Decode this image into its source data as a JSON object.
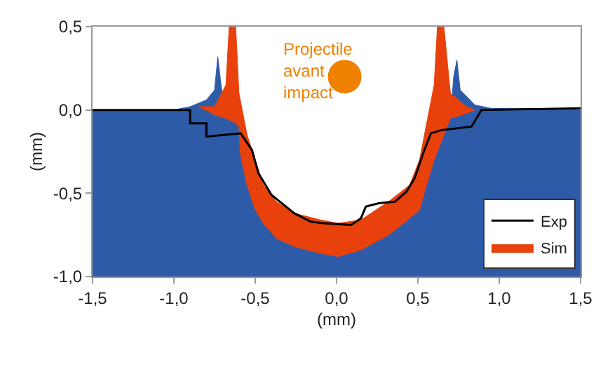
{
  "chart_data": {
    "type": "area",
    "xlabel": "(mm)",
    "ylabel": "(mm)",
    "xlim": [
      -1.5,
      1.5
    ],
    "ylim": [
      -1.0,
      0.5
    ],
    "xticks": [
      {
        "value": -1.5,
        "label": "-1,5"
      },
      {
        "value": -1.0,
        "label": "-1,0"
      },
      {
        "value": -0.5,
        "label": "-0,5"
      },
      {
        "value": 0,
        "label": "0,0"
      },
      {
        "value": 0.5,
        "label": "0,5"
      },
      {
        "value": 1.0,
        "label": "1,0"
      },
      {
        "value": 1.5,
        "label": "1,5"
      }
    ],
    "yticks": [
      {
        "value": -1.0,
        "label": "-1,0"
      },
      {
        "value": -0.5,
        "label": "-0,5"
      },
      {
        "value": 0,
        "label": "0,0"
      },
      {
        "value": 0.5,
        "label": "0,5"
      }
    ],
    "legend": "bottom right",
    "annotations": [
      "Projectile\navant\nimpact"
    ],
    "series": [
      {
        "color": "#2e5ba8",
        "x": [
          -1.5,
          -1.5,
          -1.0,
          -0.9,
          -0.8,
          -0.75,
          -0.73,
          -0.71,
          -0.68,
          -0.66,
          -0.62,
          -0.6,
          -0.59,
          -0.55,
          -0.5,
          -0.45,
          -0.37,
          -0.26,
          -0.1,
          0.01,
          0.15,
          0.32,
          0.45,
          0.51,
          0.55,
          0.6,
          0.62,
          0.66,
          0.7,
          0.72,
          0.74,
          0.76,
          0.85,
          0.95,
          1.5,
          1.5
        ],
        "values": [
          -1.0,
          0.0,
          0.0,
          0.02,
          0.06,
          0.12,
          0.32,
          0.15,
          -0.05,
          -0.06,
          -0.08,
          -0.1,
          -0.27,
          -0.45,
          -0.6,
          -0.68,
          -0.77,
          -0.82,
          -0.86,
          -0.88,
          -0.84,
          -0.75,
          -0.65,
          -0.6,
          -0.46,
          -0.3,
          -0.25,
          -0.15,
          -0.05,
          0.2,
          0.3,
          0.12,
          0.03,
          0.01,
          0.0,
          -1.0
        ]
      },
      {
        "name": "Sim",
        "color": "#e8410c",
        "x": [
          -0.85,
          -0.75,
          -0.68,
          -0.66,
          -0.62,
          -0.6,
          -0.59,
          -0.55,
          -0.5,
          -0.45,
          -0.37,
          -0.26,
          -0.1,
          0.01,
          0.15,
          0.32,
          0.45,
          0.51,
          0.55,
          0.6,
          0.62,
          0.66,
          0.7,
          0.8,
          0.85,
          0.8,
          0.7,
          0.66,
          0.62,
          0.6,
          0.55,
          0.51,
          0.45,
          0.32,
          0.15,
          0.01,
          -0.1,
          -0.26,
          -0.37,
          -0.45,
          -0.5,
          -0.55,
          -0.59,
          -0.6,
          -0.62,
          -0.66,
          -0.68,
          -0.75
        ],
        "values": [
          0.02,
          0.02,
          0.15,
          0.5,
          0.5,
          0.1,
          0.05,
          -0.15,
          -0.3,
          -0.45,
          -0.55,
          -0.62,
          -0.66,
          -0.68,
          -0.66,
          -0.55,
          -0.45,
          -0.3,
          -0.1,
          0.15,
          0.5,
          0.5,
          0.1,
          0.02,
          0.0,
          -0.02,
          -0.05,
          -0.15,
          -0.25,
          -0.3,
          -0.46,
          -0.6,
          -0.65,
          -0.75,
          -0.84,
          -0.88,
          -0.86,
          -0.82,
          -0.77,
          -0.68,
          -0.6,
          -0.45,
          -0.27,
          -0.1,
          -0.08,
          -0.06,
          -0.05,
          -0.03
        ]
      },
      {
        "type": "line",
        "name": "Exp",
        "color": "#000000",
        "x": [
          -1.5,
          -0.9,
          -0.9,
          -0.8,
          -0.8,
          -0.59,
          -0.52,
          -0.48,
          -0.4,
          -0.26,
          -0.16,
          -0.08,
          0.09,
          0.15,
          0.18,
          0.26,
          0.36,
          0.43,
          0.48,
          0.54,
          0.58,
          0.65,
          0.83,
          0.89,
          1.5
        ],
        "values": [
          0.0,
          0.0,
          -0.08,
          -0.08,
          -0.16,
          -0.14,
          -0.24,
          -0.38,
          -0.51,
          -0.62,
          -0.67,
          -0.68,
          -0.69,
          -0.65,
          -0.58,
          -0.56,
          -0.55,
          -0.49,
          -0.41,
          -0.24,
          -0.14,
          -0.12,
          -0.1,
          0.0,
          0.01
        ]
      },
      {
        "type": "scatter",
        "color": "#f08000",
        "x": [
          0.05
        ],
        "values": [
          0.2
        ]
      }
    ]
  }
}
